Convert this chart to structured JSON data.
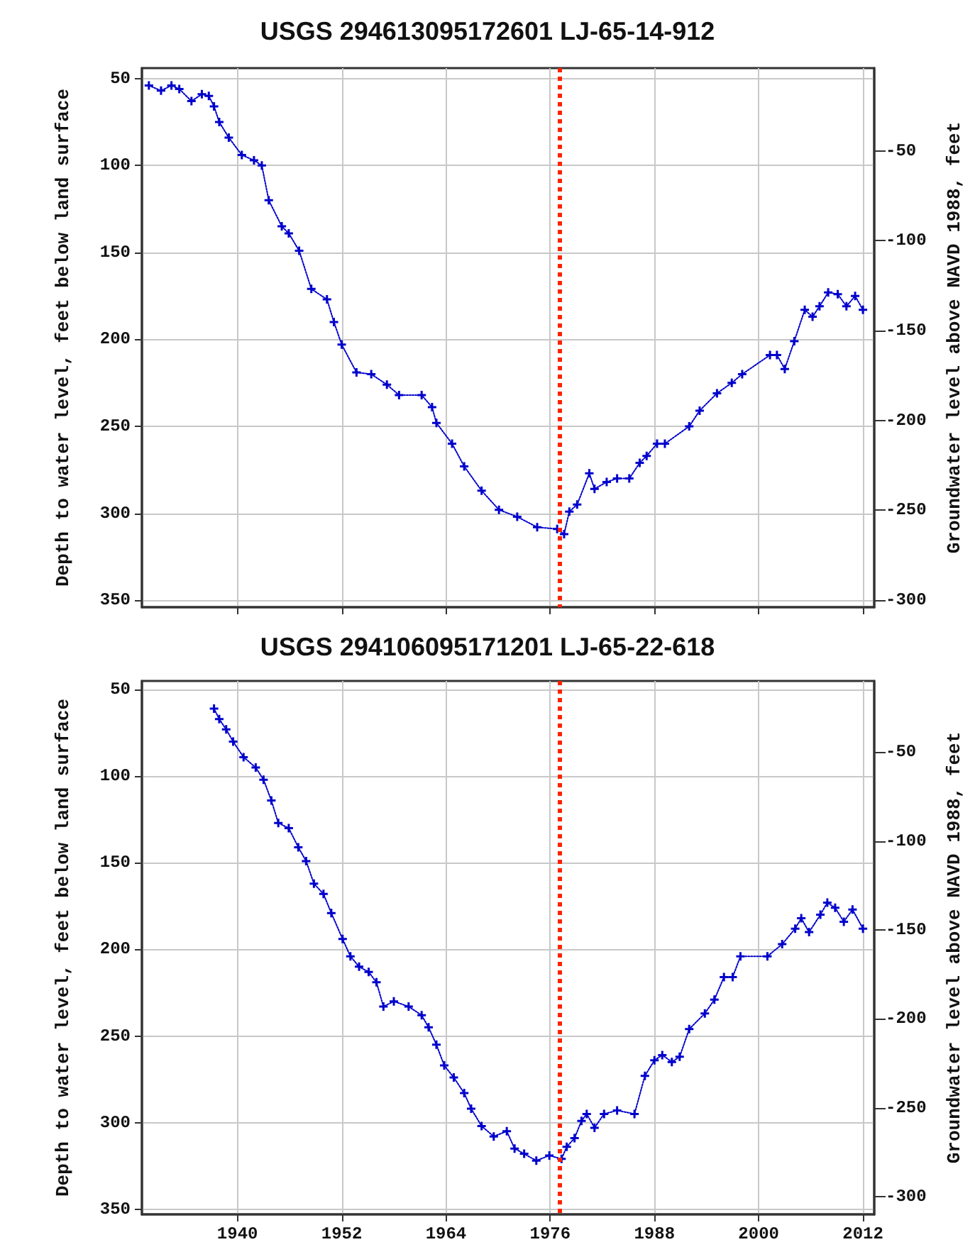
{
  "chart_data": [
    {
      "type": "line",
      "title": "USGS 294613095172601 LJ-65-14-912",
      "ylabel": "Depth to water level, feet below land surface",
      "y2label": "Groundwater level above NAVD 1988, feet",
      "xlim": [
        1929,
        2013.3
      ],
      "xticks": [
        1940,
        1952,
        1964,
        1976,
        1988,
        2000,
        2012
      ],
      "ylim": [
        354,
        44
      ],
      "yticks": [
        50,
        100,
        150,
        200,
        250,
        300,
        350
      ],
      "y2lim": [
        -304,
        -4
      ],
      "y2ticks": [
        -50,
        -100,
        -150,
        -200,
        -250,
        -300
      ],
      "tick_labels": "y",
      "grid": true,
      "marker": "cross",
      "line_style": "dotted",
      "ref_lines": [
        {
          "axis": "x",
          "value": 1977,
          "color": "#ff2200",
          "line_style": "dotted"
        }
      ],
      "series": [
        {
          "color": "#0000cc",
          "x": [
            1929.8,
            1931.2,
            1932.4,
            1933.3,
            1934.7,
            1935.9,
            1936.7,
            1937.3,
            1937.9,
            1939.0,
            1940.5,
            1941.9,
            1942.8,
            1943.6,
            1945.1,
            1945.9,
            1947.1,
            1948.5,
            1950.3,
            1951.1,
            1952.0,
            1953.7,
            1955.4,
            1957.2,
            1958.6,
            1961.2,
            1962.4,
            1962.9,
            1964.7,
            1966.1,
            1968.1,
            1970.1,
            1972.2,
            1974.5,
            1976.8,
            1977.6,
            1978.2,
            1979.1,
            1980.5,
            1981.1,
            1982.5,
            1983.7,
            1985.1,
            1986.3,
            1987.1,
            1988.3,
            1989.2,
            1992.0,
            1993.2,
            1995.2,
            1996.9,
            1998.1,
            2001.3,
            2002.1,
            2003.0,
            2004.1,
            2005.3,
            2006.2,
            2007.0,
            2008.0,
            2009.1,
            2010.1,
            2011.1,
            2012.0
          ],
          "values": [
            54,
            57,
            54,
            56,
            63,
            59,
            60,
            66,
            75,
            84,
            94,
            97,
            100,
            120,
            135,
            139,
            149,
            171,
            177,
            190,
            203,
            219,
            220,
            226,
            232,
            232,
            239,
            248,
            260,
            273,
            287,
            298,
            302,
            308,
            309,
            312,
            299,
            295,
            277,
            286,
            282,
            280,
            280,
            271,
            267,
            260,
            260,
            250,
            241,
            231,
            225,
            220,
            209,
            209,
            217,
            201,
            183,
            187,
            181,
            173,
            174,
            181,
            175,
            183
          ]
        }
      ]
    },
    {
      "type": "line",
      "title": "USGS 294106095171201 LJ-65-22-618",
      "ylabel": "Depth to water level, feet below land surface",
      "y2label": "Groundwater level above NAVD 1988, feet",
      "xlim": [
        1929,
        2013.3
      ],
      "xticks": [
        1940,
        1952,
        1964,
        1976,
        1988,
        2000,
        2012
      ],
      "ylim": [
        353,
        45
      ],
      "yticks": [
        50,
        100,
        150,
        200,
        250,
        300,
        350
      ],
      "y2lim": [
        -310,
        -10
      ],
      "y2ticks": [
        -50,
        -100,
        -150,
        -200,
        -250,
        -300
      ],
      "grid": true,
      "marker": "cross",
      "line_style": "dotted",
      "ref_lines": [
        {
          "axis": "x",
          "value": 1977,
          "color": "#ff2200",
          "line_style": "dotted"
        }
      ],
      "series": [
        {
          "color": "#0000cc",
          "x": [
            1937.3,
            1937.9,
            1938.7,
            1939.5,
            1940.7,
            1942.1,
            1943.0,
            1943.9,
            1944.7,
            1945.9,
            1947.0,
            1947.9,
            1948.8,
            1949.9,
            1950.8,
            1952.1,
            1953.0,
            1954.0,
            1955.1,
            1956.0,
            1956.8,
            1958.0,
            1959.7,
            1961.2,
            1962.0,
            1962.9,
            1963.8,
            1964.9,
            1966.1,
            1966.9,
            1968.1,
            1969.5,
            1971.0,
            1971.9,
            1973.0,
            1974.4,
            1975.9,
            1977.3,
            1977.9,
            1978.8,
            1979.6,
            1980.2,
            1981.1,
            1982.2,
            1983.7,
            1985.7,
            1986.9,
            1988.0,
            1988.9,
            1990.0,
            1990.9,
            1992.0,
            1993.8,
            1994.9,
            1996.0,
            1997.0,
            1997.9,
            2001.0,
            2002.7,
            2004.2,
            2004.9,
            2005.8,
            2007.1,
            2007.9,
            2008.8,
            2009.8,
            2010.8,
            2012.0
          ],
          "values": [
            61,
            67,
            73,
            80,
            89,
            95,
            102,
            114,
            127,
            130,
            141,
            149,
            162,
            168,
            179,
            194,
            204,
            210,
            213,
            219,
            233,
            230,
            233,
            238,
            245,
            255,
            267,
            274,
            283,
            292,
            302,
            308,
            305,
            315,
            318,
            322,
            319,
            321,
            314,
            309,
            299,
            295,
            303,
            295,
            293,
            295,
            273,
            264,
            261,
            265,
            262,
            246,
            237,
            229,
            216,
            216,
            204,
            204,
            197,
            188,
            182,
            190,
            180,
            173,
            176,
            184,
            177,
            188
          ]
        }
      ]
    }
  ]
}
